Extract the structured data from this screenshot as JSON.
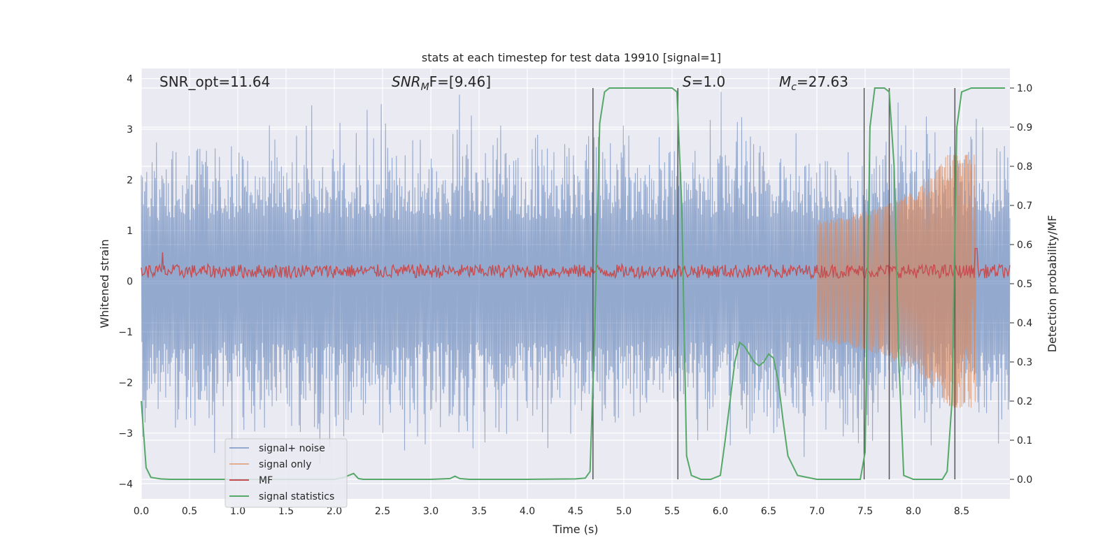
{
  "chart_data": {
    "type": "line",
    "title": "stats at each timestep for test data 19910 [signal=1]",
    "xlabel": "Time (s)",
    "ylabel": "Whitened strain",
    "ylabel_right": "Detection probability/MF",
    "xlim": [
      0,
      9.0
    ],
    "ylim": [
      -4.3,
      4.2
    ],
    "ylim_right": [
      -0.05,
      1.05
    ],
    "x_ticks": [
      "0.0",
      "0.5",
      "1.0",
      "1.5",
      "2.0",
      "2.5",
      "3.0",
      "3.5",
      "4.0",
      "4.5",
      "5.0",
      "5.5",
      "6.0",
      "6.5",
      "7.0",
      "7.5",
      "8.0",
      "8.5"
    ],
    "y_ticks": [
      "−4",
      "−3",
      "−2",
      "−1",
      "0",
      "1",
      "2",
      "3",
      "4"
    ],
    "y_ticks_right": [
      "0.0",
      "0.1",
      "0.2",
      "0.3",
      "0.4",
      "0.5",
      "0.6",
      "0.7",
      "0.8",
      "0.9",
      "1.0"
    ],
    "grid": true,
    "legend_position": "lower-left",
    "annotations": {
      "snr_opt": "SNR_opt=11.64",
      "snr_mf_main": "SNR",
      "snr_mf_sub": "M",
      "snr_mf_rest": "F=[9.46]",
      "s_main": "S",
      "s_rest": "=1.0",
      "mc_main": "M",
      "mc_sub": "c",
      "mc_rest": "=27.63"
    },
    "vertical_lines_x": [
      4.68,
      5.56,
      7.49,
      7.75,
      8.43
    ],
    "series": [
      {
        "name": "signal+ noise",
        "color": "#4c72b0",
        "kind": "noise",
        "amplitude_range": [
          -2.5,
          3.6
        ]
      },
      {
        "name": "signal only",
        "color": "#dd8452",
        "kind": "chirp",
        "peak_time": 8.65,
        "peak_amplitude": 2.5
      },
      {
        "name": "MF",
        "color": "#c44e52",
        "kind": "mf",
        "baseline": 0.53
      },
      {
        "name": "signal statistics",
        "color": "#55a868",
        "kind": "prob",
        "x": [
          0.0,
          0.05,
          0.1,
          0.2,
          0.3,
          0.5,
          1.0,
          1.5,
          2.0,
          2.1,
          2.2,
          2.25,
          2.3,
          2.5,
          3.0,
          3.2,
          3.25,
          3.3,
          3.4,
          4.0,
          4.5,
          4.6,
          4.65,
          4.7,
          4.75,
          4.8,
          4.85,
          4.9,
          5.0,
          5.3,
          5.5,
          5.55,
          5.6,
          5.65,
          5.7,
          5.8,
          5.9,
          6.0,
          6.05,
          6.1,
          6.15,
          6.2,
          6.25,
          6.3,
          6.35,
          6.4,
          6.45,
          6.5,
          6.55,
          6.6,
          6.65,
          6.7,
          6.8,
          7.0,
          7.3,
          7.45,
          7.5,
          7.55,
          7.6,
          7.65,
          7.7,
          7.75,
          7.8,
          7.85,
          7.9,
          8.0,
          8.1,
          8.2,
          8.3,
          8.35,
          8.4,
          8.45,
          8.5,
          8.6,
          8.7,
          8.8,
          8.95
        ],
        "y": [
          0.2,
          0.03,
          0.005,
          0.001,
          0.0,
          0.0,
          0.0,
          0.0,
          0.0,
          0.005,
          0.015,
          0.002,
          0.0,
          0.0,
          0.0,
          0.002,
          0.008,
          0.002,
          0.0,
          0.0,
          0.001,
          0.003,
          0.02,
          0.4,
          0.91,
          0.99,
          1.0,
          1.0,
          1.0,
          1.0,
          1.0,
          0.99,
          0.7,
          0.06,
          0.01,
          0.0,
          0.0,
          0.01,
          0.1,
          0.2,
          0.3,
          0.35,
          0.34,
          0.32,
          0.3,
          0.29,
          0.3,
          0.32,
          0.31,
          0.25,
          0.15,
          0.06,
          0.01,
          0.0,
          0.0,
          0.0,
          0.07,
          0.9,
          1.0,
          1.0,
          1.0,
          0.99,
          0.8,
          0.3,
          0.01,
          0.0,
          0.0,
          0.0,
          0.0,
          0.02,
          0.2,
          0.9,
          0.99,
          1.0,
          1.0,
          1.0,
          1.0
        ]
      }
    ]
  }
}
